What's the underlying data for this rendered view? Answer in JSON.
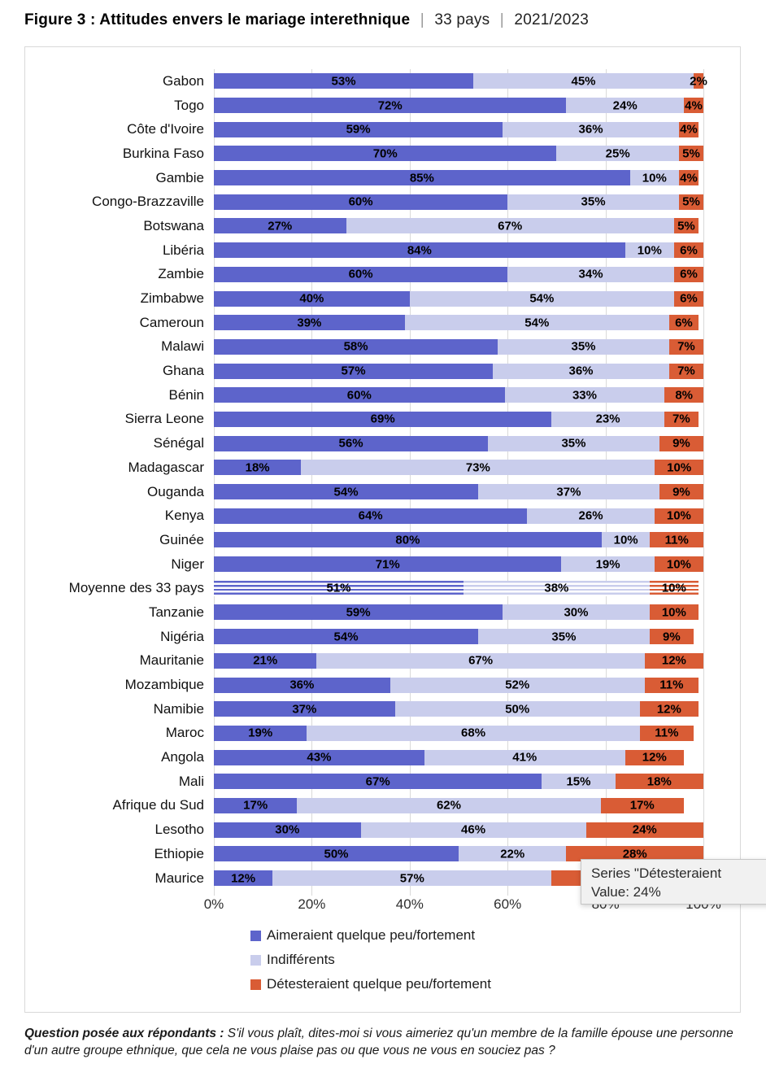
{
  "title": {
    "main": "Figure 3 : Attitudes envers le mariage interethnique",
    "sep1": "|",
    "subtitle1": "33 pays",
    "sep2": "|",
    "subtitle2": "2021/2023"
  },
  "chart_data": {
    "type": "bar",
    "orientation": "horizontal",
    "stacked": true,
    "xlim": [
      0,
      100
    ],
    "x_ticks": [
      "0%",
      "20%",
      "40%",
      "60%",
      "80%",
      "100%"
    ],
    "grid": true,
    "legend_position": "bottom-left",
    "hatched_category": "Moyenne des 33 pays",
    "categories": [
      "Gabon",
      "Togo",
      "Côte d'Ivoire",
      "Burkina Faso",
      "Gambie",
      "Congo-Brazzaville",
      "Botswana",
      "Libéria",
      "Zambie",
      "Zimbabwe",
      "Cameroun",
      "Malawi",
      "Ghana",
      "Bénin",
      "Sierra Leone",
      "Sénégal",
      "Madagascar",
      "Ouganda",
      "Kenya",
      "Guinée",
      "Niger",
      "Moyenne des 33 pays",
      "Tanzanie",
      "Nigéria",
      "Mauritanie",
      "Mozambique",
      "Namibie",
      "Maroc",
      "Angola",
      "Mali",
      "Afrique du Sud",
      "Lesotho",
      "Ethiopie",
      "Maurice"
    ],
    "series": [
      {
        "key": "aimeraient",
        "name": "Aimeraient quelque peu/fortement",
        "color": "#5d64cb",
        "values": [
          53,
          72,
          59,
          70,
          85,
          60,
          27,
          84,
          60,
          40,
          39,
          58,
          57,
          60,
          69,
          56,
          18,
          54,
          64,
          80,
          71,
          51,
          59,
          54,
          21,
          36,
          37,
          19,
          43,
          67,
          17,
          30,
          50,
          12
        ]
      },
      {
        "key": "indifferents",
        "name": "Indifférents",
        "color": "#c9cdec",
        "values": [
          45,
          24,
          36,
          25,
          10,
          35,
          67,
          10,
          34,
          54,
          54,
          35,
          36,
          33,
          23,
          35,
          73,
          37,
          26,
          10,
          19,
          38,
          30,
          35,
          67,
          52,
          50,
          68,
          41,
          15,
          62,
          46,
          22,
          57
        ]
      },
      {
        "key": "detesteraient",
        "name": "Détesteraient quelque peu/fortement",
        "color": "#d95c35",
        "values": [
          2,
          4,
          4,
          5,
          4,
          5,
          5,
          6,
          6,
          6,
          6,
          7,
          7,
          8,
          7,
          9,
          10,
          9,
          10,
          11,
          10,
          10,
          10,
          9,
          12,
          11,
          12,
          11,
          12,
          18,
          17,
          24,
          28,
          31
        ]
      }
    ]
  },
  "tooltip": {
    "line1": "Series \"Détesteraient",
    "line2": "Value: 24%"
  },
  "footer": {
    "lead": "Question posée aux répondants :",
    "text": " S'il vous plaît, dites-moi si vous aimeriez qu'un membre de la famille épouse une personne d'un autre groupe ethnique, que cela ne vous plaise pas ou que vous ne vous en souciez pas ?"
  }
}
